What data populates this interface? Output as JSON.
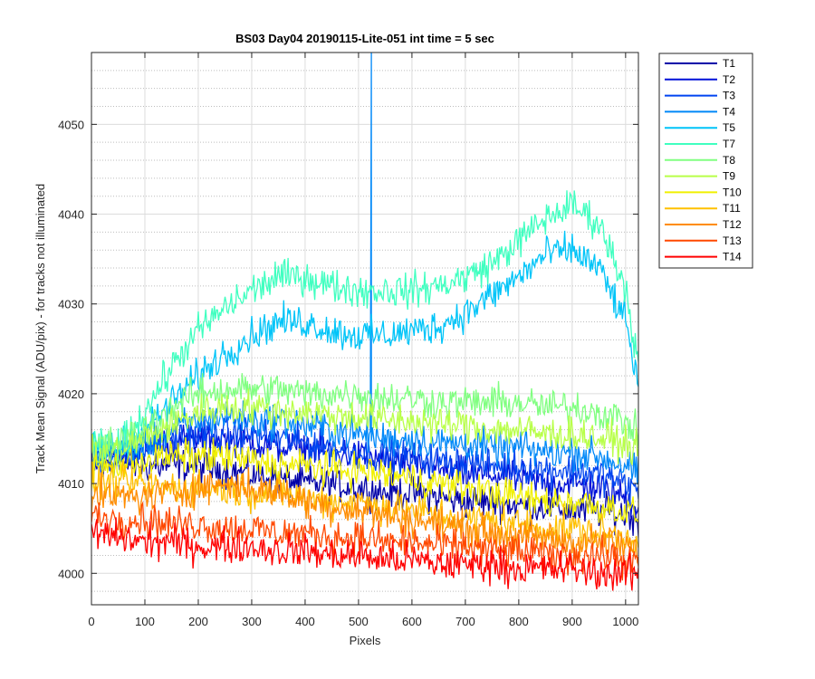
{
  "chart_data": {
    "type": "line",
    "title": "BS03 Day04 20190115-Lite-051 int time = 5 sec",
    "xlabel": "Pixels",
    "ylabel": "Track Mean Signal (ADU/pix) - for tracks not illuminated",
    "xlim": [
      0,
      1024
    ],
    "ylim": [
      3996.5,
      4058
    ],
    "xticks": [
      0,
      100,
      200,
      300,
      400,
      500,
      600,
      700,
      800,
      900,
      1000
    ],
    "yticks": [
      4000,
      4010,
      4020,
      4030,
      4040,
      4050
    ],
    "grid": true,
    "minor_grid_y": true,
    "legend_position": "outside-right",
    "x_samples": [
      0,
      50,
      100,
      150,
      200,
      250,
      300,
      350,
      400,
      450,
      500,
      550,
      600,
      650,
      700,
      750,
      800,
      850,
      900,
      950,
      1000,
      1024
    ],
    "series": [
      {
        "name": "T1",
        "color": "#0000a8",
        "values": [
          4012,
          4012.5,
          4012,
          4012,
          4012,
          4011.5,
          4011,
          4010.5,
          4010,
          4010,
          4009.5,
          4009,
          4009,
          4008.5,
          4008,
          4008,
          4007.5,
          4007.5,
          4007,
          4007,
          4006.5,
          4006
        ]
      },
      {
        "name": "T2",
        "color": "#0010d8",
        "values": [
          4012.5,
          4013,
          4014,
          4014.5,
          4015,
          4015,
          4014.5,
          4014,
          4014,
          4013.5,
          4013,
          4012.5,
          4012,
          4011.5,
          4011,
          4011,
          4010.5,
          4010,
          4010,
          4009.5,
          4008.5,
          4007.5
        ]
      },
      {
        "name": "T3",
        "color": "#0044f0",
        "values": [
          4012.5,
          4013,
          4014,
          4015,
          4015.5,
          4015.5,
          4015.5,
          4015,
          4014.5,
          4014,
          4013.5,
          4013,
          4013,
          4012.5,
          4012.5,
          4012,
          4012,
          4011.5,
          4011.5,
          4011,
          4010,
          4009
        ]
      },
      {
        "name": "T4",
        "color": "#0088f8",
        "values": [
          4013,
          4013.5,
          4014,
          4016,
          4017,
          4017.5,
          4017,
          4017,
          4016.5,
          4016,
          4015.5,
          4015,
          4015,
          4014.5,
          4014.5,
          4014,
          4014,
          4013.5,
          4013.5,
          4013,
          4012,
          4011
        ]
      },
      {
        "name": "T5",
        "color": "#00c4f8",
        "values": [
          4014,
          4014,
          4016,
          4019,
          4022,
          4024.5,
          4026.5,
          4028,
          4028,
          4027,
          4026.5,
          4026.5,
          4027,
          4027.5,
          4029,
          4031,
          4033,
          4035.5,
          4036,
          4034,
          4028,
          4021
        ]
      },
      {
        "name": "T7",
        "color": "#40ffc0",
        "values": [
          4014,
          4014,
          4018,
          4023,
          4027,
          4029.5,
          4031.5,
          4033,
          4033,
          4032,
          4031.5,
          4031.5,
          4031.5,
          4032,
          4033,
          4034.5,
          4037,
          4039.5,
          4041,
          4039,
          4032,
          4023
        ]
      },
      {
        "name": "T8",
        "color": "#80ff80",
        "values": [
          4014,
          4014.5,
          4016,
          4018.5,
          4020,
          4020.5,
          4020.5,
          4020.5,
          4020,
          4020,
          4020,
          4019.5,
          4019.5,
          4019,
          4019,
          4019,
          4019,
          4018.5,
          4018.5,
          4018,
          4017,
          4015.5
        ]
      },
      {
        "name": "T9",
        "color": "#b8ff48",
        "values": [
          4013,
          4013.5,
          4015,
          4016.5,
          4018,
          4018.5,
          4018.5,
          4018,
          4018,
          4017.5,
          4017.5,
          4017,
          4017,
          4016.5,
          4016.5,
          4016,
          4016,
          4015.5,
          4015.5,
          4015,
          4014.5,
          4013.5
        ]
      },
      {
        "name": "T10",
        "color": "#f0f000",
        "values": [
          4011.5,
          4012,
          4012.5,
          4013,
          4013,
          4013,
          4012.5,
          4012,
          4012,
          4011.5,
          4011.5,
          4011,
          4010.5,
          4010,
          4009.5,
          4009,
          4008.5,
          4008,
          4008,
          4007.5,
          4007,
          4006.5
        ]
      },
      {
        "name": "T11",
        "color": "#ffc000",
        "values": [
          4010,
          4010,
          4010,
          4009.5,
          4009.5,
          4009.5,
          4009,
          4009,
          4008.5,
          4008,
          4008,
          4007.5,
          4007,
          4006.5,
          4006,
          4006,
          4005.5,
          4005,
          4005,
          4004.5,
          4004,
          4003.5
        ]
      },
      {
        "name": "T12",
        "color": "#ff8c00",
        "values": [
          4008.5,
          4008.5,
          4008.5,
          4009,
          4009.5,
          4010,
          4009.5,
          4009,
          4008,
          4007.5,
          4007,
          4006.5,
          4006,
          4005.5,
          4005,
          4004.5,
          4004,
          4004,
          4003.5,
          4003.5,
          4003,
          4002.5
        ]
      },
      {
        "name": "T13",
        "color": "#ff4800",
        "values": [
          4006.5,
          4006,
          4006,
          4005.5,
          4005.5,
          4005,
          4005,
          4004.5,
          4004.5,
          4004,
          4004,
          4003.5,
          4003.5,
          4003,
          4003,
          4002.5,
          4002.5,
          4002,
          4002,
          4002,
          4001.5,
          4001
        ]
      },
      {
        "name": "T14",
        "color": "#ff0000",
        "values": [
          4004.5,
          4004,
          4003.5,
          4003.5,
          4003,
          4003,
          4003,
          4002.5,
          4002.5,
          4002,
          4002,
          4001.5,
          4001.5,
          4001,
          4001,
          4001,
          4000.5,
          4000.5,
          4000.5,
          4000,
          4000,
          4000
        ]
      }
    ],
    "annotations": [
      {
        "series": "T4",
        "type": "spike",
        "x": 524,
        "y_from": 4022,
        "y_to": 4058
      }
    ]
  }
}
